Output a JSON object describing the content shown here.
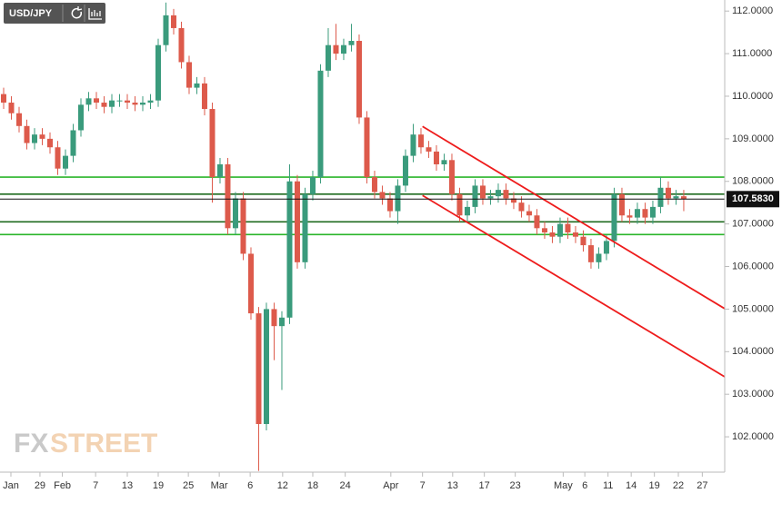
{
  "chart_data": {
    "type": "candlestick",
    "title": "USD/JPY",
    "watermark": [
      "FX",
      "STREET"
    ],
    "up_color": "#3a9b7c",
    "down_color": "#dd5a4b",
    "xlim": [
      -0.47,
      93.3
    ],
    "xticks": [
      {
        "value": 0.94,
        "label": "Jan"
      },
      {
        "value": 4.7,
        "label": "29"
      },
      {
        "value": 7.6,
        "label": "Feb"
      },
      {
        "value": 11.9,
        "label": "7"
      },
      {
        "value": 16,
        "label": "13"
      },
      {
        "value": 20,
        "label": "19"
      },
      {
        "value": 23.9,
        "label": "25"
      },
      {
        "value": 27.9,
        "label": "Mar"
      },
      {
        "value": 31.9,
        "label": "6"
      },
      {
        "value": 36.1,
        "label": "12"
      },
      {
        "value": 40,
        "label": "18"
      },
      {
        "value": 44.2,
        "label": "24"
      },
      {
        "value": 50.1,
        "label": "Apr"
      },
      {
        "value": 54.2,
        "label": "7"
      },
      {
        "value": 58.1,
        "label": "13"
      },
      {
        "value": 62.2,
        "label": "17"
      },
      {
        "value": 66.2,
        "label": "23"
      },
      {
        "value": 72.4,
        "label": "May"
      },
      {
        "value": 75.2,
        "label": "6"
      },
      {
        "value": 78.2,
        "label": "11"
      },
      {
        "value": 81.2,
        "label": "14"
      },
      {
        "value": 84.2,
        "label": "19"
      },
      {
        "value": 87.3,
        "label": "22"
      },
      {
        "value": 90.4,
        "label": "27"
      }
    ],
    "ylim": [
      101.17,
      112.26
    ],
    "yticks": [
      {
        "value": 102,
        "label": "102.0000"
      },
      {
        "value": 103,
        "label": "103.0000"
      },
      {
        "value": 104,
        "label": "104.0000"
      },
      {
        "value": 105,
        "label": "105.0000"
      },
      {
        "value": 106,
        "label": "106.0000"
      },
      {
        "value": 107,
        "label": "107.0000"
      },
      {
        "value": 108,
        "label": "108.0000"
      },
      {
        "value": 109,
        "label": "109.0000"
      },
      {
        "value": 110,
        "label": "110.0000"
      },
      {
        "value": 111,
        "label": "111.0000"
      },
      {
        "value": 112,
        "label": "112.0000"
      }
    ],
    "open": [
      110.05,
      109.85,
      109.6,
      109.3,
      108.9,
      109.1,
      109.0,
      108.8,
      108.3,
      108.6,
      109.2,
      109.8,
      109.95,
      109.85,
      109.75,
      109.9,
      109.9,
      109.85,
      109.8,
      109.85,
      109.9,
      111.2,
      111.9,
      111.6,
      110.8,
      110.2,
      110.3,
      109.7,
      108.1,
      108.4,
      106.9,
      107.6,
      106.3,
      104.9,
      102.3,
      105.0,
      104.6,
      104.8,
      108.0,
      106.1,
      107.7,
      108.1,
      110.6,
      111.2,
      111.0,
      111.2,
      111.3,
      109.5,
      108.1,
      107.75,
      107.6,
      107.3,
      107.9,
      108.6,
      109.1,
      108.8,
      108.7,
      108.4,
      108.5,
      107.7,
      107.2,
      107.4,
      107.9,
      107.6,
      107.65,
      107.8,
      107.6,
      107.5,
      107.3,
      107.2,
      106.9,
      106.8,
      106.7,
      107.0,
      106.8,
      106.7,
      106.5,
      106.1,
      106.3,
      106.6,
      107.7,
      107.2,
      107.15,
      107.35,
      107.15,
      107.4,
      107.85,
      107.6,
      107.65
    ],
    "high": [
      110.2,
      110.0,
      109.75,
      109.45,
      109.25,
      109.25,
      109.15,
      108.95,
      108.75,
      109.35,
      109.95,
      110.1,
      110.1,
      110.0,
      110.05,
      110.05,
      110.05,
      110.0,
      110.0,
      110.05,
      111.35,
      112.2,
      112.05,
      111.75,
      110.95,
      110.45,
      110.45,
      109.85,
      108.55,
      108.55,
      107.75,
      107.75,
      106.45,
      105.05,
      105.15,
      105.15,
      104.95,
      108.4,
      108.15,
      107.85,
      108.25,
      110.75,
      111.6,
      111.7,
      111.35,
      111.7,
      111.45,
      109.65,
      108.25,
      107.9,
      107.75,
      108.05,
      108.75,
      109.35,
      109.25,
      108.95,
      108.85,
      108.65,
      108.65,
      107.85,
      107.55,
      108.05,
      108.05,
      107.8,
      107.95,
      107.95,
      107.75,
      107.65,
      107.45,
      107.35,
      107.05,
      106.95,
      107.15,
      107.15,
      106.95,
      106.85,
      106.65,
      106.45,
      106.75,
      107.85,
      107.85,
      107.35,
      107.5,
      107.5,
      107.55,
      108.1,
      108.0,
      107.8,
      107.8
    ],
    "low": [
      109.7,
      109.45,
      109.15,
      108.75,
      108.75,
      108.85,
      108.65,
      108.15,
      108.15,
      108.45,
      109.05,
      109.65,
      109.7,
      109.6,
      109.6,
      109.75,
      109.7,
      109.65,
      109.65,
      109.7,
      109.75,
      111.05,
      111.45,
      110.65,
      110.05,
      110.05,
      109.55,
      107.5,
      107.95,
      106.75,
      106.75,
      106.15,
      104.75,
      101.2,
      102.15,
      103.8,
      103.1,
      104.65,
      105.95,
      105.95,
      107.55,
      107.95,
      110.45,
      110.85,
      110.85,
      111.05,
      109.35,
      107.95,
      107.6,
      107.45,
      107.15,
      107.0,
      107.75,
      108.45,
      108.65,
      108.55,
      108.25,
      108.25,
      107.55,
      107.05,
      107.05,
      107.25,
      107.45,
      107.45,
      107.5,
      107.45,
      107.35,
      107.15,
      107.05,
      106.75,
      106.65,
      106.55,
      106.55,
      106.65,
      106.55,
      106.35,
      105.95,
      105.95,
      106.15,
      106.45,
      107.05,
      107.0,
      107.0,
      107.0,
      107.0,
      107.25,
      107.45,
      107.45,
      107.3
    ],
    "close": [
      109.85,
      109.6,
      109.3,
      108.9,
      109.1,
      109.0,
      108.8,
      108.3,
      108.6,
      109.2,
      109.8,
      109.95,
      109.85,
      109.75,
      109.9,
      109.9,
      109.85,
      109.8,
      109.85,
      109.9,
      111.2,
      111.9,
      111.6,
      110.8,
      110.2,
      110.3,
      109.7,
      108.1,
      108.4,
      106.9,
      107.6,
      106.3,
      104.9,
      102.3,
      105.0,
      104.6,
      104.8,
      108.0,
      106.1,
      107.7,
      108.1,
      110.6,
      111.2,
      111.0,
      111.2,
      111.3,
      109.5,
      108.1,
      107.75,
      107.6,
      107.3,
      107.9,
      108.6,
      109.1,
      108.8,
      108.7,
      108.4,
      108.5,
      107.7,
      107.2,
      107.4,
      107.9,
      107.6,
      107.65,
      107.8,
      107.6,
      107.5,
      107.3,
      107.2,
      106.9,
      106.8,
      106.7,
      107.0,
      106.8,
      106.7,
      106.5,
      106.1,
      106.3,
      106.6,
      107.7,
      107.2,
      107.15,
      107.35,
      107.15,
      107.4,
      107.85,
      107.6,
      107.65,
      107.58
    ],
    "hlines": [
      {
        "value": 108.1,
        "color": "#2bb52b"
      },
      {
        "value": 107.7,
        "color": "#1f6b1f"
      },
      {
        "value": 107.05,
        "color": "#1f6b1f"
      },
      {
        "value": 106.75,
        "color": "#2bb52b"
      }
    ],
    "trendlines": [
      {
        "color": "#ee1c1c",
        "x": [
          54.2,
          93.3
        ],
        "y": [
          109.29,
          105.01
        ]
      },
      {
        "color": "#ee1c1c",
        "x": [
          54.2,
          93.3
        ],
        "y": [
          107.67,
          103.41
        ]
      }
    ],
    "current_price": {
      "value": 107.583,
      "label": "107.5830",
      "color": "#111111"
    }
  }
}
